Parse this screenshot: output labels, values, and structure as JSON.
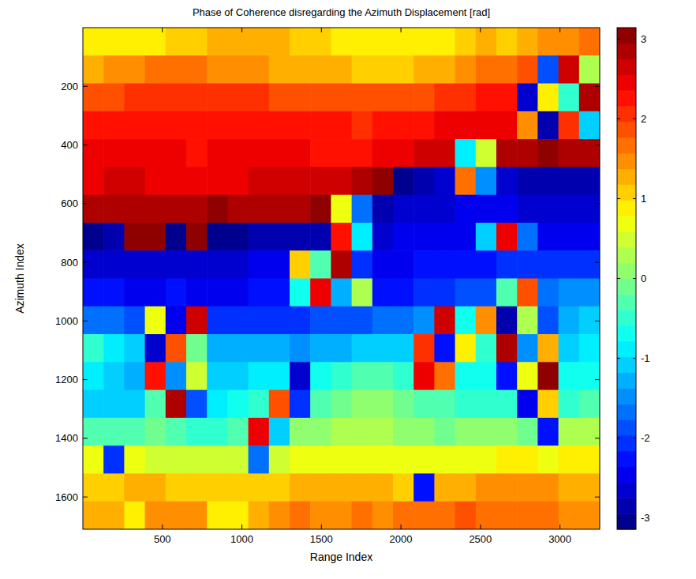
{
  "chart_data": {
    "type": "heatmap",
    "title": "Phase of Coherence disregarding the Azimuth Displacement [rad]",
    "x_label": "Range Index",
    "y_label": "Azimuth Index",
    "x": [
      65,
      195,
      325,
      455,
      585,
      715,
      845,
      975,
      1105,
      1235,
      1365,
      1495,
      1625,
      1755,
      1885,
      2015,
      2145,
      2275,
      2405,
      2535,
      2665,
      2795,
      2925,
      3055,
      3185
    ],
    "y": [
      47.5,
      142.5,
      237.5,
      332.5,
      427.5,
      522.5,
      617.5,
      712.5,
      807.5,
      902.5,
      997.5,
      1092.5,
      1187.5,
      1282.5,
      1377.5,
      1472.5,
      1567.5,
      1662.5
    ],
    "values": [
      [
        0.9,
        0.9,
        0.8,
        0.9,
        1.0,
        1.1,
        1.2,
        1.3,
        1.3,
        1.2,
        1.1,
        1.0,
        0.9,
        0.9,
        0.8,
        0.8,
        0.8,
        0.9,
        1.0,
        1.3,
        1.1,
        1.2,
        1.4,
        1.5,
        1.6
      ],
      [
        1.3,
        1.4,
        1.5,
        1.6,
        1.7,
        1.6,
        1.5,
        1.5,
        1.4,
        1.3,
        1.3,
        1.3,
        1.2,
        1.1,
        1.1,
        1.1,
        1.2,
        1.3,
        1.5,
        1.6,
        1.7,
        1.8,
        -1.9,
        2.7,
        0.3
      ],
      [
        1.9,
        1.9,
        2.0,
        2.0,
        2.1,
        2.1,
        2.0,
        2.0,
        2.0,
        1.9,
        1.9,
        1.8,
        1.9,
        1.8,
        1.8,
        1.9,
        1.9,
        2.0,
        2.1,
        2.2,
        2.2,
        -2.6,
        0.8,
        -0.5,
        2.9
      ],
      [
        2.2,
        2.3,
        2.3,
        2.2,
        2.3,
        2.3,
        2.2,
        2.2,
        2.3,
        2.3,
        2.2,
        2.2,
        2.2,
        2.1,
        2.2,
        2.2,
        2.3,
        2.4,
        2.4,
        2.5,
        2.5,
        1.4,
        -2.9,
        2.1,
        -1.1
      ],
      [
        2.4,
        2.4,
        2.5,
        2.5,
        2.4,
        2.3,
        2.4,
        2.4,
        2.5,
        2.5,
        2.4,
        2.3,
        2.3,
        2.3,
        2.4,
        2.5,
        2.6,
        2.7,
        -0.8,
        0.4,
        2.8,
        2.9,
        3.0,
        2.9,
        2.8
      ],
      [
        2.5,
        2.6,
        2.6,
        2.5,
        2.5,
        2.4,
        2.5,
        2.5,
        2.6,
        2.6,
        2.6,
        2.6,
        2.7,
        2.8,
        3.0,
        -3.0,
        -2.8,
        -2.7,
        1.6,
        -1.4,
        -2.7,
        -2.8,
        -2.8,
        -2.8,
        -2.9
      ],
      [
        2.8,
        2.9,
        2.9,
        2.8,
        2.8,
        2.9,
        3.0,
        2.9,
        2.8,
        2.8,
        2.9,
        3.0,
        0.6,
        -1.6,
        -2.8,
        -2.7,
        -2.6,
        -2.6,
        -2.5,
        -2.5,
        -2.5,
        -2.6,
        -2.6,
        -2.7,
        -2.7
      ],
      [
        -3.0,
        -2.9,
        3.0,
        3.1,
        -3.1,
        3.0,
        -3.0,
        -3.0,
        -2.9,
        -2.9,
        -2.8,
        -2.9,
        2.3,
        -0.9,
        -2.6,
        -2.5,
        -2.4,
        -2.4,
        -2.4,
        -1.0,
        2.4,
        -1.7,
        -2.4,
        -2.5,
        -2.5
      ],
      [
        -2.6,
        -2.6,
        -2.7,
        -2.6,
        -2.6,
        -2.7,
        -2.6,
        -2.6,
        -2.5,
        -2.5,
        1.1,
        -0.3,
        2.8,
        -2.0,
        -2.5,
        -2.4,
        -2.3,
        -2.3,
        -2.2,
        -2.2,
        -2.1,
        -2.1,
        -2.1,
        -2.0,
        -2.0
      ],
      [
        -2.3,
        -2.3,
        -2.4,
        -2.4,
        -2.3,
        -2.4,
        -2.4,
        -2.4,
        -2.3,
        -2.3,
        -0.6,
        2.5,
        -1.3,
        0.2,
        -2.3,
        -2.2,
        -2.1,
        -2.0,
        -1.9,
        -1.8,
        -0.2,
        1.9,
        -1.6,
        -1.5,
        -1.4
      ],
      [
        -1.6,
        -1.7,
        -1.8,
        0.7,
        -2.4,
        2.6,
        -2.1,
        -2.1,
        -2.0,
        -2.0,
        -2.0,
        -1.9,
        -1.9,
        -1.8,
        -1.7,
        -1.6,
        -1.5,
        2.7,
        -0.7,
        1.4,
        -2.9,
        0.3,
        -1.9,
        -1.2,
        -1.1
      ],
      [
        -0.4,
        -0.9,
        -1.0,
        -2.6,
        1.9,
        -0.1,
        -1.2,
        -1.3,
        -1.2,
        -1.3,
        -1.4,
        -1.3,
        -1.2,
        -1.1,
        -1.1,
        -1.0,
        2.1,
        -2.2,
        0.9,
        -0.5,
        2.8,
        -1.5,
        1.3,
        -1.0,
        -0.9
      ],
      [
        -0.9,
        -1.1,
        -1.2,
        2.3,
        -1.5,
        0.4,
        -1.0,
        -1.0,
        -0.9,
        -0.9,
        -2.7,
        -0.6,
        -0.4,
        -0.3,
        -0.3,
        -0.4,
        2.4,
        1.6,
        -0.6,
        -0.7,
        -2.3,
        0.6,
        3.0,
        -0.7,
        -0.6
      ],
      [
        -1.0,
        -1.0,
        -1.1,
        -0.3,
        2.9,
        -1.9,
        -0.9,
        -0.6,
        -0.5,
        1.8,
        -2.0,
        -0.3,
        -0.1,
        0.0,
        0.0,
        -0.1,
        -0.2,
        -0.3,
        -0.4,
        -0.4,
        -0.5,
        -2.5,
        1.1,
        -0.4,
        -0.3
      ],
      [
        -0.3,
        -0.2,
        -0.2,
        -0.1,
        -0.2,
        -0.4,
        -0.5,
        -0.3,
        2.4,
        -1.0,
        0.0,
        0.1,
        0.2,
        0.2,
        0.2,
        0.1,
        0.0,
        -0.1,
        0.0,
        0.1,
        0.0,
        -0.1,
        -2.2,
        0.2,
        0.3
      ],
      [
        0.6,
        -2.0,
        0.6,
        0.5,
        0.5,
        0.4,
        0.4,
        0.4,
        -1.7,
        0.5,
        0.6,
        0.6,
        0.7,
        0.7,
        0.7,
        0.6,
        0.6,
        0.6,
        0.7,
        0.7,
        0.8,
        0.8,
        0.7,
        0.8,
        0.9
      ],
      [
        1.0,
        1.1,
        1.2,
        1.2,
        1.1,
        1.0,
        1.0,
        1.1,
        1.0,
        1.1,
        1.2,
        1.3,
        1.3,
        1.3,
        1.2,
        1.1,
        -2.2,
        1.3,
        1.3,
        1.4,
        1.4,
        1.5,
        1.4,
        1.3,
        1.2
      ],
      [
        1.2,
        1.3,
        0.9,
        1.4,
        1.5,
        1.4,
        0.9,
        0.8,
        1.3,
        1.5,
        1.6,
        1.5,
        1.4,
        1.6,
        1.5,
        1.6,
        1.7,
        1.7,
        1.8,
        1.7,
        1.7,
        1.6,
        1.6,
        1.5,
        1.4
      ]
    ],
    "xlim": [
      0,
      3250
    ],
    "ylim": [
      0,
      1710
    ],
    "xticks": [
      500,
      1000,
      1500,
      2000,
      2500,
      3000
    ],
    "yticks": [
      200,
      400,
      600,
      800,
      1000,
      1200,
      1400,
      1600
    ],
    "colorbar_range": [
      -3.1416,
      3.1416
    ],
    "colorbar_ticks": [
      -3,
      -2,
      -1,
      0,
      1,
      2,
      3
    ]
  }
}
